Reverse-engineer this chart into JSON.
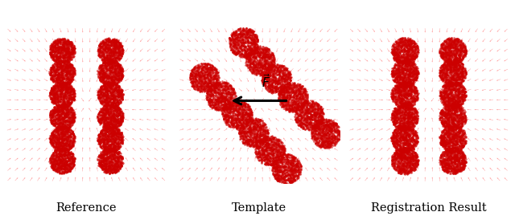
{
  "fig_width": 6.4,
  "fig_height": 2.69,
  "dpi": 100,
  "bg_color": "#ffffff",
  "point_color": "#cc0000",
  "vector_color": "#ff5555",
  "label_color": "#000000",
  "labels": [
    "Reference",
    "Template",
    "Registration Result"
  ],
  "label_fontsize": 10.5,
  "force_arrow_color": "#000000",
  "pt_size": 3.5,
  "pt_alpha": 0.6,
  "n_pts_per_blob": 800,
  "grid_nx": 22,
  "grid_ny": 16
}
